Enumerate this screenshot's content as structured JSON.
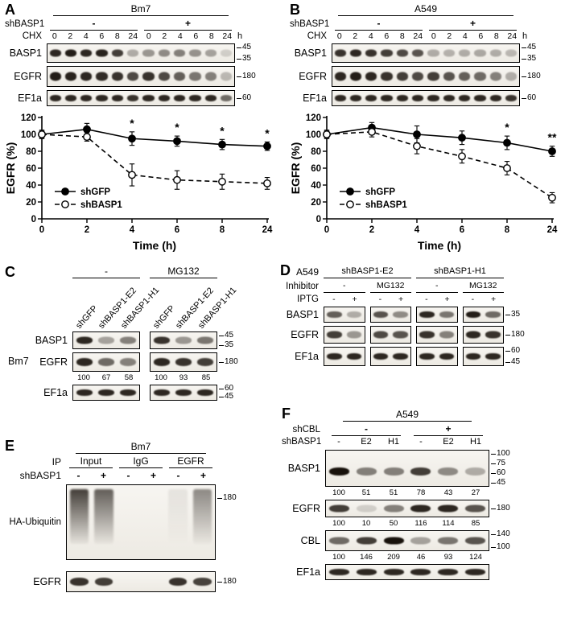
{
  "colors": {
    "band": "#18120c",
    "blot_background": "#f5f3ee",
    "axis": "#000000",
    "background": "#ffffff"
  },
  "panels": {
    "A": {
      "label": "A",
      "cell_line": "Bm7",
      "sh_label": "shBASP1",
      "sh_groups": [
        "-",
        "+"
      ],
      "chx_label": "CHX",
      "time_points": [
        "0",
        "2",
        "4",
        "6",
        "8",
        "24",
        "0",
        "2",
        "4",
        "6",
        "8",
        "24"
      ],
      "time_unit": "h",
      "blots": [
        {
          "name": "BASP1",
          "markers": [
            "45",
            "35"
          ],
          "lanes": [
            0.9,
            0.95,
            0.9,
            0.92,
            0.8,
            0.3,
            0.4,
            0.45,
            0.5,
            0.42,
            0.35,
            0.15
          ]
        },
        {
          "name": "EGFR",
          "markers": [
            "180"
          ],
          "lanes": [
            0.95,
            0.92,
            0.9,
            0.88,
            0.85,
            0.75,
            0.85,
            0.75,
            0.65,
            0.55,
            0.5,
            0.25
          ]
        },
        {
          "name": "EF1a",
          "markers": [
            "60"
          ],
          "lanes": [
            0.9,
            0.9,
            0.9,
            0.9,
            0.9,
            0.85,
            0.9,
            0.9,
            0.9,
            0.9,
            0.9,
            0.6
          ]
        }
      ]
    },
    "B": {
      "label": "B",
      "cell_line": "A549",
      "sh_label": "shBASP1",
      "sh_groups": [
        "-",
        "+"
      ],
      "chx_label": "CHX",
      "time_points": [
        "0",
        "2",
        "4",
        "6",
        "8",
        "24",
        "0",
        "2",
        "4",
        "6",
        "8",
        "24"
      ],
      "time_unit": "h",
      "blots": [
        {
          "name": "BASP1",
          "markers": [
            "45",
            "35"
          ],
          "lanes": [
            0.85,
            0.9,
            0.85,
            0.8,
            0.75,
            0.7,
            0.3,
            0.28,
            0.3,
            0.32,
            0.3,
            0.25
          ]
        },
        {
          "name": "EGFR",
          "markers": [
            "180"
          ],
          "lanes": [
            0.9,
            0.95,
            0.9,
            0.85,
            0.8,
            0.75,
            0.8,
            0.7,
            0.65,
            0.6,
            0.5,
            0.3
          ]
        },
        {
          "name": "EF1a",
          "markers": [
            "60"
          ],
          "lanes": [
            0.9,
            0.9,
            0.9,
            0.9,
            0.9,
            0.9,
            0.9,
            0.9,
            0.9,
            0.9,
            0.9,
            0.85
          ]
        }
      ]
    },
    "C": {
      "label": "C",
      "cell_line": "Bm7",
      "group_labels": [
        "-",
        "MG132"
      ],
      "lane_labels": [
        "shGFP",
        "shBASP1-E2",
        "shBASP1-H1",
        "shGFP",
        "shBASP1-E2",
        "shBASP1-H1"
      ],
      "blots": [
        {
          "name": "BASP1",
          "markers": [
            "45",
            "35"
          ],
          "groups": [
            [
              0.9,
              0.35,
              0.5
            ],
            [
              0.85,
              0.4,
              0.55
            ]
          ]
        },
        {
          "name": "EGFR",
          "markers": [
            "180"
          ],
          "groups": [
            [
              0.9,
              0.6,
              0.5
            ],
            [
              0.9,
              0.85,
              0.8
            ]
          ],
          "numbers": [
            "100",
            "67",
            "58",
            "100",
            "93",
            "85"
          ]
        },
        {
          "name": "EF1a",
          "markers": [
            "60",
            "45"
          ],
          "groups": [
            [
              0.9,
              0.9,
              0.9
            ],
            [
              0.9,
              0.9,
              0.9
            ]
          ]
        }
      ]
    },
    "D": {
      "label": "D",
      "cell_line": "A549",
      "construct_labels": [
        "shBASP1-E2",
        "shBASP1-H1"
      ],
      "inhibitor_label": "Inhibitor",
      "inhibitor_values": [
        "-",
        "MG132",
        "-",
        "MG132"
      ],
      "iptg_label": "IPTG",
      "iptg_values": [
        "-",
        "+",
        "-",
        "+",
        "-",
        "+",
        "-",
        "+"
      ],
      "blots": [
        {
          "name": "BASP1",
          "markers": [
            "35"
          ],
          "groups": [
            [
              0.65,
              0.3
            ],
            [
              0.7,
              0.45
            ],
            [
              0.9,
              0.55
            ],
            [
              0.95,
              0.6
            ]
          ]
        },
        {
          "name": "EGFR",
          "markers": [
            "180"
          ],
          "groups": [
            [
              0.8,
              0.4
            ],
            [
              0.75,
              0.7
            ],
            [
              0.85,
              0.5
            ],
            [
              0.9,
              0.85
            ]
          ]
        },
        {
          "name": "EF1a",
          "markers": [
            "60",
            "45"
          ],
          "groups": [
            [
              0.9,
              0.9
            ],
            [
              0.9,
              0.9
            ],
            [
              0.9,
              0.9
            ],
            [
              0.9,
              0.9
            ]
          ]
        }
      ]
    },
    "E": {
      "label": "E",
      "cell_line": "Bm7",
      "ip_label": "IP",
      "ip_groups": [
        "Input",
        "IgG",
        "EGFR"
      ],
      "sh_label": "shBASP1",
      "sh_values": [
        "-",
        "+",
        "-",
        "+",
        "-",
        "+"
      ],
      "blots": [
        {
          "name": "HA-Ubiquitin",
          "type": "smear",
          "markers": [
            "180"
          ],
          "lanes": [
            0.85,
            0.7,
            0.0,
            0.0,
            0.08,
            0.5
          ]
        },
        {
          "name": "EGFR",
          "markers": [
            "180"
          ],
          "lanes": [
            0.85,
            0.8,
            0.0,
            0.0,
            0.85,
            0.78
          ]
        }
      ]
    },
    "F": {
      "label": "F",
      "cell_line": "A549",
      "shcbl_label": "shCBL",
      "shcbl_groups": [
        "-",
        "+"
      ],
      "shbasp1_label": "shBASP1",
      "shbasp1_values": [
        "-",
        "E2",
        "H1",
        "-",
        "E2",
        "H1"
      ],
      "blots": [
        {
          "name": "BASP1",
          "markers": [
            "100",
            "75",
            "60",
            "45"
          ],
          "lanes": [
            1,
            0.5,
            0.5,
            0.8,
            0.45,
            0.3
          ],
          "numbers": [
            "100",
            "51",
            "51",
            "78",
            "43",
            "27"
          ]
        },
        {
          "name": "EGFR",
          "markers": [
            "180"
          ],
          "lanes": [
            0.8,
            0.15,
            0.5,
            0.9,
            0.9,
            0.7
          ],
          "numbers": [
            "100",
            "10",
            "50",
            "116",
            "114",
            "85"
          ]
        },
        {
          "name": "CBL",
          "markers": [
            "140",
            "100"
          ],
          "lanes": [
            0.6,
            0.8,
            1,
            0.35,
            0.55,
            0.7
          ],
          "numbers": [
            "100",
            "146",
            "209",
            "46",
            "93",
            "124"
          ]
        },
        {
          "name": "EF1a",
          "markers": [],
          "lanes": [
            0.9,
            0.9,
            0.9,
            0.9,
            0.9,
            0.9
          ]
        }
      ]
    }
  },
  "chart_data": [
    {
      "panel": "A",
      "type": "line",
      "x": [
        0,
        2,
        4,
        6,
        8,
        24
      ],
      "x_tick_labels": [
        "0",
        "2",
        "4",
        "6",
        "8",
        "24"
      ],
      "equal_spacing": true,
      "xlabel": "Time (h)",
      "ylabel": "EGFR (%)",
      "ylim": [
        0,
        120
      ],
      "yticks": [
        0,
        20,
        40,
        60,
        80,
        100,
        120
      ],
      "grid": false,
      "legend_position": "lower-left",
      "series": [
        {
          "name": "shGFP",
          "marker": "filled-circle",
          "line": "solid",
          "values": [
            100,
            106,
            95,
            92,
            88,
            86
          ],
          "err": [
            5,
            7,
            8,
            6,
            6,
            5
          ]
        },
        {
          "name": "shBASP1",
          "marker": "open-circle",
          "line": "dashed",
          "values": [
            100,
            97,
            52,
            46,
            44,
            42
          ],
          "err": [
            4,
            5,
            13,
            11,
            9,
            7
          ]
        }
      ],
      "significance": [
        "",
        "",
        "*",
        "*",
        "*",
        "*"
      ]
    },
    {
      "panel": "B",
      "type": "line",
      "x": [
        0,
        2,
        4,
        6,
        8,
        24
      ],
      "x_tick_labels": [
        "0",
        "2",
        "4",
        "6",
        "8",
        "24"
      ],
      "equal_spacing": true,
      "xlabel": "Time (h)",
      "ylabel": "EGFR (%)",
      "ylim": [
        0,
        120
      ],
      "yticks": [
        0,
        20,
        40,
        60,
        80,
        100,
        120
      ],
      "grid": false,
      "legend_position": "lower-left",
      "series": [
        {
          "name": "shGFP",
          "marker": "filled-circle",
          "line": "solid",
          "values": [
            100,
            108,
            100,
            96,
            90,
            80
          ],
          "err": [
            5,
            6,
            10,
            8,
            8,
            6
          ]
        },
        {
          "name": "shBASP1",
          "marker": "open-circle",
          "line": "dashed",
          "values": [
            100,
            103,
            86,
            74,
            60,
            25
          ],
          "err": [
            4,
            6,
            9,
            8,
            8,
            6
          ]
        }
      ],
      "significance": [
        "",
        "",
        "",
        "",
        "*",
        "**"
      ]
    }
  ]
}
